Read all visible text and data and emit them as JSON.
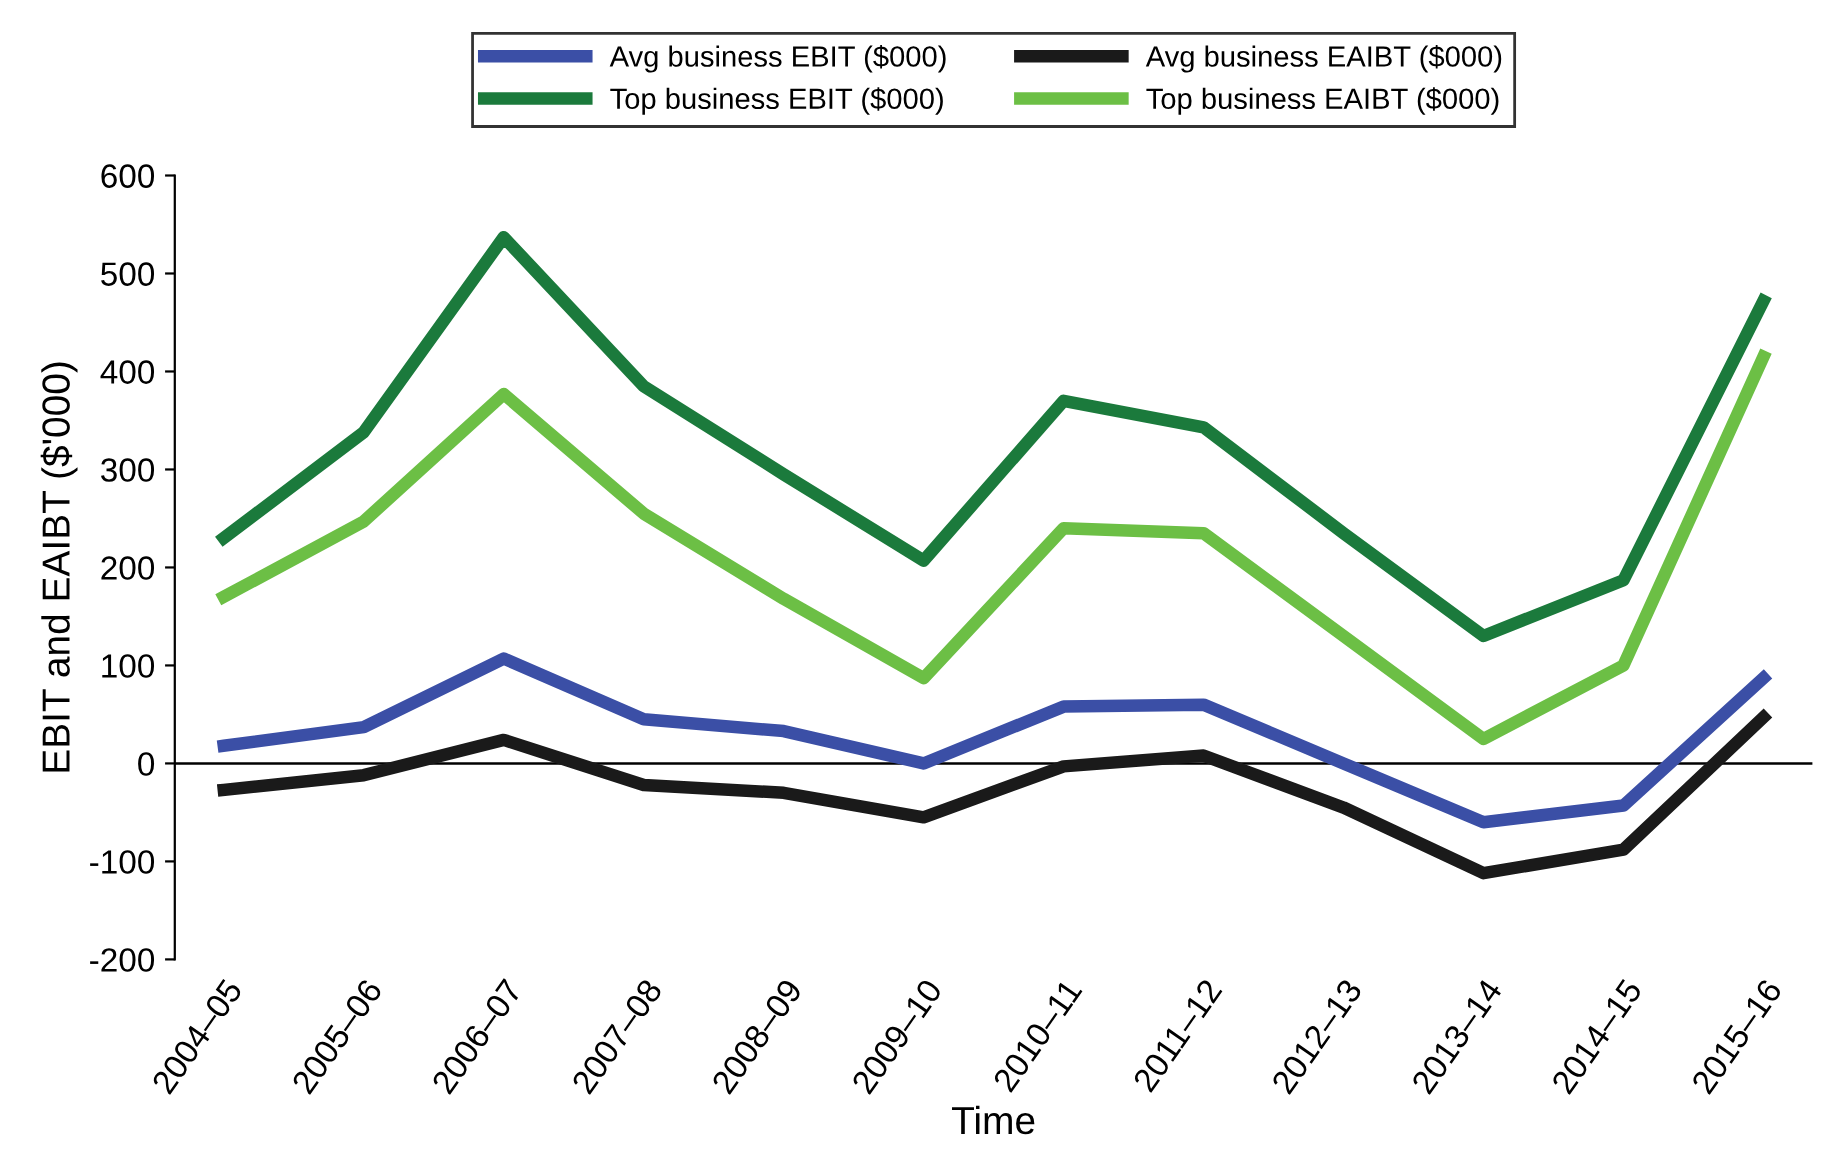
{
  "chart_data": {
    "type": "line",
    "xlabel": "Time",
    "ylabel": "EBIT and EAIBT ($'000)",
    "categories": [
      "2004–05",
      "2005–06",
      "2006–07",
      "2007–08",
      "2008–09",
      "2009–10",
      "2010–11",
      "2011–12",
      "2012–13",
      "2013–14",
      "2014–15",
      "2015–16"
    ],
    "series": [
      {
        "name": "Avg business EBIT ($000)",
        "color": "#3b4fa6",
        "values": [
          18,
          37,
          107,
          45,
          33,
          0,
          58,
          60,
          0,
          -60,
          -43,
          87
        ]
      },
      {
        "name": "Top business EBIT ($000)",
        "color": "#1b7a3c",
        "values": [
          230,
          338,
          537,
          385,
          295,
          207,
          370,
          343,
          235,
          130,
          187,
          472
        ]
      },
      {
        "name": "Avg business EAIBT ($000)",
        "color": "#1a1a1a",
        "values": [
          -27,
          -12,
          24,
          -22,
          -30,
          -55,
          -3,
          8,
          -45,
          -112,
          -88,
          47
        ]
      },
      {
        "name": "Top business EAIBT ($000)",
        "color": "#6cbf45",
        "values": [
          170,
          247,
          377,
          255,
          168,
          87,
          240,
          235,
          130,
          25,
          100,
          415
        ]
      }
    ],
    "ylim": [
      -200,
      600
    ],
    "yticks": [
      -200,
      -100,
      0,
      100,
      200,
      300,
      400,
      500,
      600
    ],
    "ref_lines": [
      {
        "axis": "y",
        "value": 0,
        "color": "#000000"
      }
    ],
    "grid": false,
    "legend": "top",
    "marker": "none",
    "line_style": "solid"
  }
}
